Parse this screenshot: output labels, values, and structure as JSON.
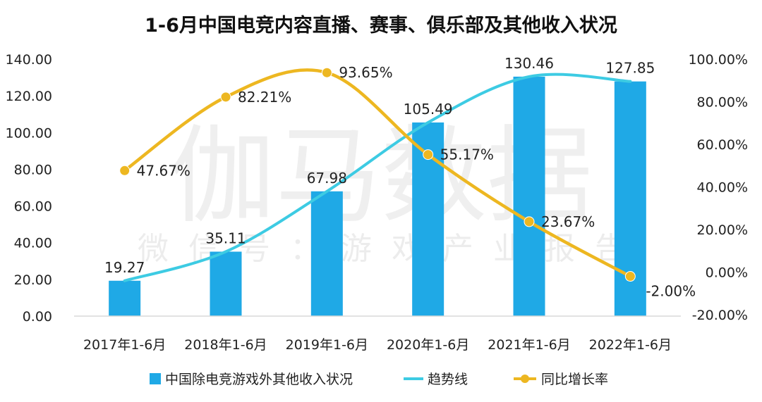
{
  "watermark": {
    "main": "伽马数据",
    "sub": "微信号：游戏产业报告"
  },
  "chart_data": {
    "type": "bar",
    "title": "1-6月中国电竞内容直播、赛事、俱乐部及其他收入状况",
    "categories": [
      "2017年1-6月",
      "2018年1-6月",
      "2019年1-6月",
      "2020年1-6月",
      "2021年1-6月",
      "2022年1-6月"
    ],
    "series": [
      {
        "name": "中国除电竞游戏外其他收入状况",
        "kind": "bar",
        "axis": "left",
        "color": "#1FA9E6",
        "values": [
          19.27,
          35.11,
          67.98,
          105.49,
          130.46,
          127.85
        ],
        "labels": [
          "19.27",
          "35.11",
          "67.98",
          "105.49",
          "130.46",
          "127.85"
        ]
      },
      {
        "name": "趋势线",
        "kind": "line",
        "axis": "left",
        "color": "#3DCBE3",
        "values": [
          19.27,
          35.11,
          67.98,
          105.49,
          130.46,
          127.85
        ]
      },
      {
        "name": "同比增长率",
        "kind": "line",
        "axis": "right",
        "color": "#EDB721",
        "values": [
          47.67,
          82.21,
          93.65,
          55.17,
          23.67,
          -2.0
        ],
        "labels": [
          "47.67%",
          "82.21%",
          "93.65%",
          "55.17%",
          "23.67%",
          "-2.00%"
        ]
      }
    ],
    "y_left": {
      "min": 0,
      "max": 140,
      "ticks": [
        "0.00",
        "20.00",
        "40.00",
        "60.00",
        "80.00",
        "100.00",
        "120.00",
        "140.00"
      ]
    },
    "y_right": {
      "min": -20,
      "max": 100,
      "ticks": [
        "-20.00%",
        "0.00%",
        "20.00%",
        "40.00%",
        "60.00%",
        "80.00%",
        "100.00%"
      ]
    },
    "grid": false,
    "legend_position": "bottom"
  }
}
